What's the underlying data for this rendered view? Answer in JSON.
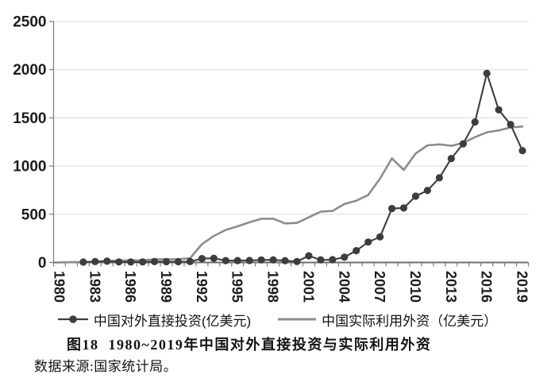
{
  "chart_data": {
    "type": "line",
    "title": "图18  1980~2019年中国对外直接投资与实际利用外资",
    "source_note": "数据来源:国家统计局。",
    "x_categories": [
      1980,
      1981,
      1982,
      1983,
      1984,
      1985,
      1986,
      1987,
      1988,
      1989,
      1990,
      1991,
      1992,
      1993,
      1994,
      1995,
      1996,
      1997,
      1998,
      1999,
      2000,
      2001,
      2002,
      2003,
      2004,
      2005,
      2006,
      2007,
      2008,
      2009,
      2010,
      2011,
      2012,
      2013,
      2014,
      2015,
      2016,
      2017,
      2018,
      2019
    ],
    "x_tick_labels": [
      "1980",
      "1983",
      "1986",
      "1989",
      "1992",
      "1995",
      "1998",
      "2001",
      "2004",
      "2007",
      "2010",
      "2013",
      "2016",
      "2019"
    ],
    "y_tick_labels": [
      "0",
      "500",
      "1000",
      "1500",
      "2000",
      "2500"
    ],
    "y_tick_values": [
      0,
      500,
      1000,
      1500,
      2000,
      2500
    ],
    "ylim": [
      0,
      2500
    ],
    "grid": "horizontal-only",
    "legend_position": "bottom",
    "axis_color": "#7a7a7a",
    "gridline_color": "#d9d9d9",
    "series": [
      {
        "name": "中国对外直接投资(亿美元)",
        "color": "#3d3d3d",
        "marker": "circle",
        "start_year": 1982,
        "values": [
          4,
          9,
          13,
          6,
          5,
          6,
          9,
          8,
          8,
          9,
          40,
          44,
          20,
          20,
          21,
          26,
          27,
          19,
          10,
          69,
          27,
          29,
          55,
          123,
          212,
          265,
          559,
          565,
          688,
          747,
          878,
          1078,
          1231,
          1457,
          1961,
          1583,
          1430,
          1160
        ]
      },
      {
        "name": "中国实际利用外资（亿美元）",
        "color": "#8c8c8c",
        "marker": "none",
        "start_year": 1980,
        "values": [
          1,
          3,
          4,
          9,
          14,
          20,
          22,
          23,
          32,
          34,
          35,
          44,
          190,
          275,
          338,
          375,
          417,
          453,
          455,
          405,
          410,
          469,
          527,
          535,
          606,
          640,
          700,
          870,
          1080,
          960,
          1130,
          1215,
          1225,
          1210,
          1240,
          1300,
          1350,
          1370,
          1400,
          1410
        ]
      }
    ]
  },
  "caption": {
    "text": "图18  1980~2019年中国对外直接投资与实际利用外资"
  },
  "source": {
    "text": "数据来源:国家统计局。"
  }
}
